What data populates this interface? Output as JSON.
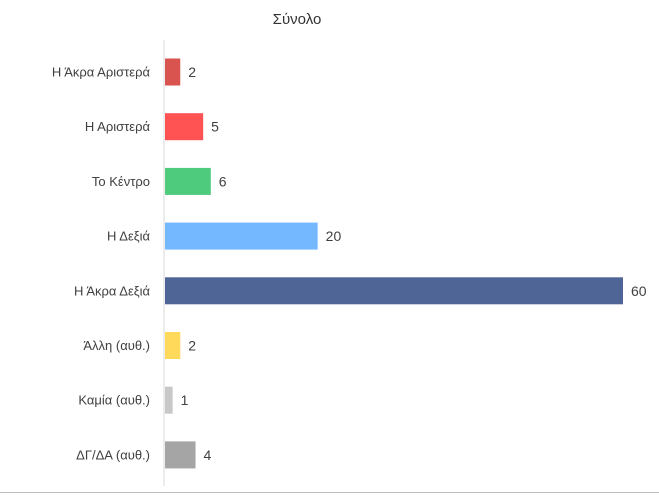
{
  "chart_data": {
    "type": "bar",
    "orientation": "horizontal",
    "title": "Σύνολο",
    "categories": [
      "Η Άκρα Αριστερά",
      "Η Αριστερά",
      "Το Κέντρο",
      "Η Δεξιά",
      "Η Άκρα Δεξιά",
      "Άλλη (αυθ.)",
      "Καμία (αυθ.)",
      "ΔΓ/ΔΑ (αυθ.)"
    ],
    "values": [
      2,
      5,
      6,
      20,
      60,
      2,
      1,
      4
    ],
    "bar_colors": [
      "#d9534f",
      "#ff5252",
      "#4ecb7c",
      "#74b9ff",
      "#4f6596",
      "#ffd95a",
      "#c8c8c8",
      "#a5a5a5"
    ],
    "data_labels": true,
    "xlim": [
      0,
      60
    ],
    "grid": false,
    "legend": "none",
    "axis_line_color": "#d9d9d9",
    "bottom_rule_color": "#bfbfbf"
  }
}
